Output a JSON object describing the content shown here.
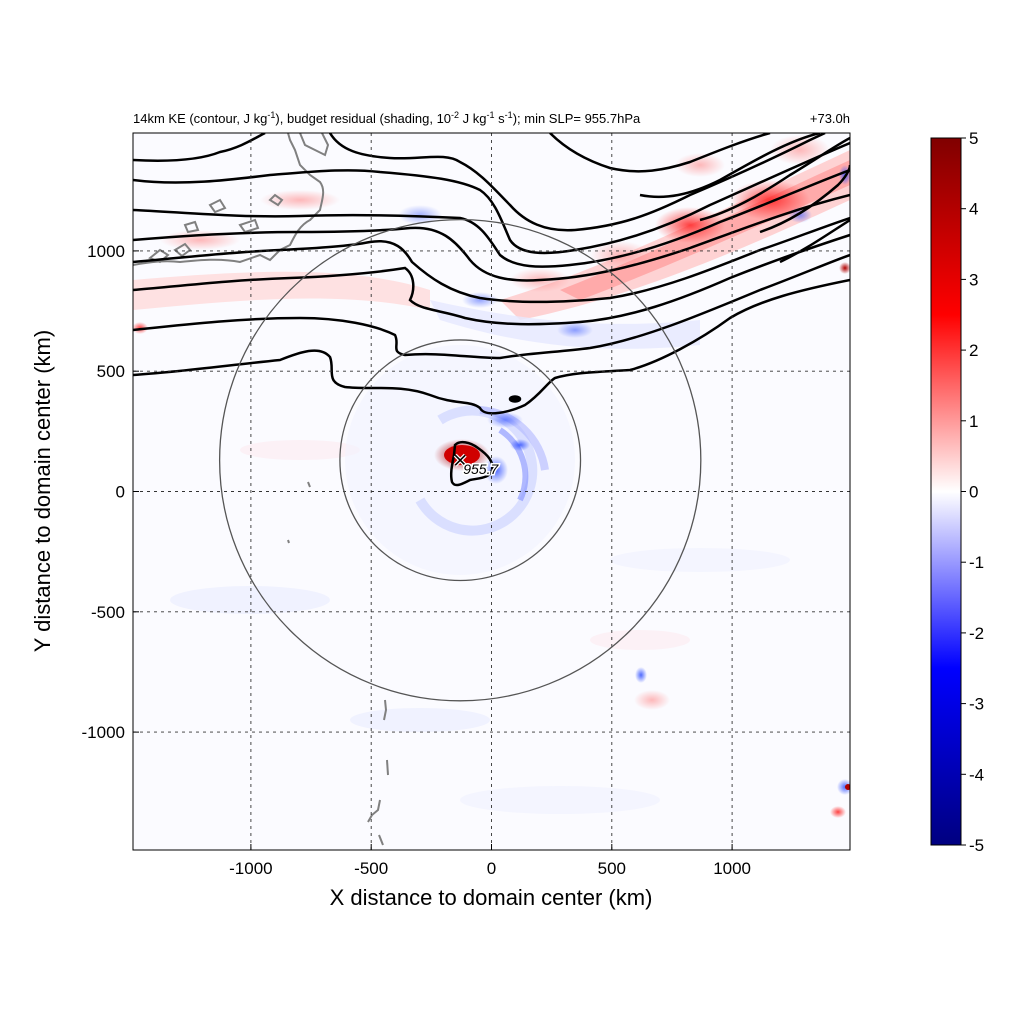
{
  "chart_data": {
    "type": "heatmap",
    "title_parts": {
      "a": "14km KE (contour, J kg",
      "a_sup": "-1",
      "b": "), budget residual (shading, 10",
      "b_sup": "-2",
      "c": " J kg",
      "c_sup": "-1",
      "d": " s",
      "d_sup": "-1",
      "e": "); min SLP= 955.7hPa"
    },
    "time_label": "+73.0h",
    "xlabel": "X distance to domain center (km)",
    "ylabel": "Y distance to domain center (km)",
    "xlim": [
      -1490,
      1490
    ],
    "ylim": [
      -1490,
      1490
    ],
    "xticks": [
      -1000,
      -500,
      0,
      500,
      1000
    ],
    "yticks": [
      -1000,
      -500,
      0,
      500,
      1000
    ],
    "xtick_labels": [
      "-1000",
      "-500",
      "0",
      "500",
      "1000"
    ],
    "ytick_labels": [
      "-1000",
      "-500",
      "0",
      "500",
      "1000"
    ],
    "grid": true,
    "colorbar": {
      "min": -5,
      "max": 5,
      "ticks": [
        "5",
        "4",
        "3",
        "2",
        "1",
        "0",
        "-1",
        "-2",
        "-3",
        "-4",
        "-5"
      ],
      "colors": [
        "#000080",
        "#0000ff",
        "#ffffff",
        "#ff0000",
        "#800000"
      ]
    },
    "storm_center": {
      "x": -130,
      "y": 130,
      "label": "955.7"
    },
    "range_circles_radius_km": [
      500,
      1000
    ],
    "contour_color": "#000000",
    "coastline_color": "#808080"
  }
}
